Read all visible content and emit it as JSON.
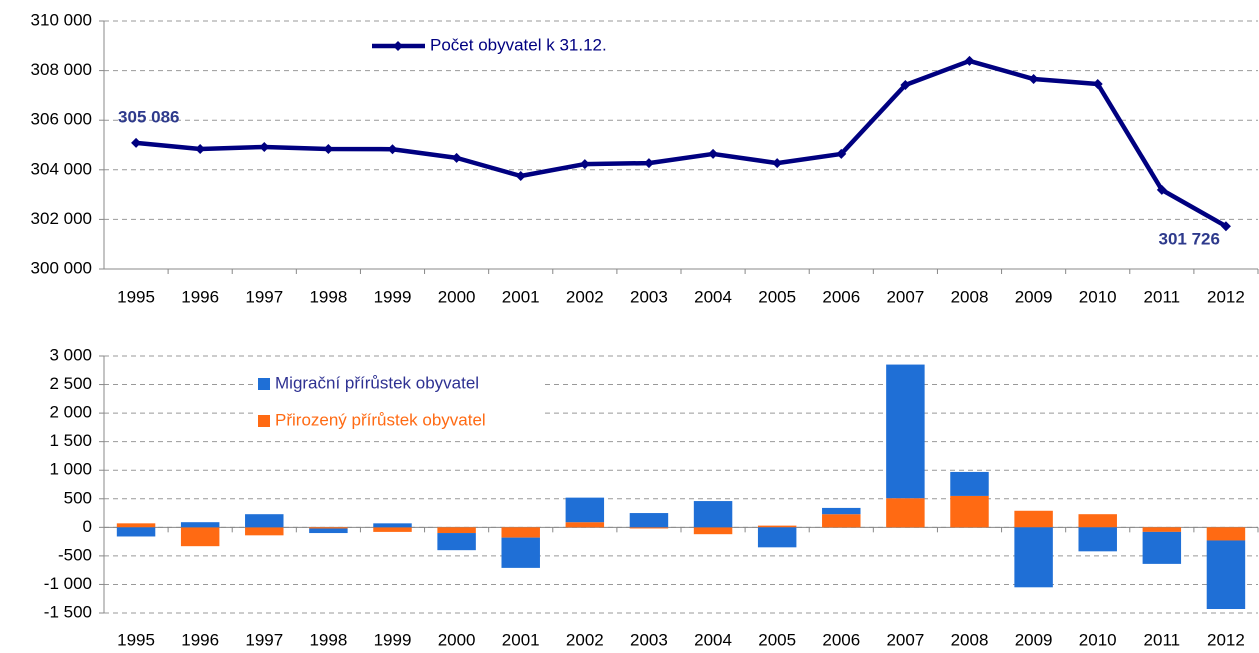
{
  "chart_data": [
    {
      "type": "line",
      "categories": [
        "1995",
        "1996",
        "1997",
        "1998",
        "1999",
        "2000",
        "2001",
        "2002",
        "2003",
        "2004",
        "2005",
        "2006",
        "2007",
        "2008",
        "2009",
        "2010",
        "2011",
        "2012"
      ],
      "series": [
        {
          "name": "Počet obyvatel k 31.12.",
          "color": "#000080",
          "values": [
            305086,
            304840,
            304920,
            304840,
            304830,
            304480,
            303750,
            304230,
            304270,
            304640,
            304270,
            304640,
            307420,
            308390,
            307660,
            307460,
            303190,
            301726
          ],
          "value_labels": [
            "305 086",
            null,
            null,
            null,
            null,
            null,
            null,
            null,
            null,
            null,
            null,
            null,
            null,
            null,
            null,
            null,
            null,
            "301 726"
          ]
        }
      ],
      "ylim": [
        300000,
        310000
      ],
      "yticks": [
        {
          "value": 300000,
          "label": "300 000"
        },
        {
          "value": 302000,
          "label": "302 000"
        },
        {
          "value": 304000,
          "label": "304 000"
        },
        {
          "value": 306000,
          "label": "306 000"
        },
        {
          "value": 308000,
          "label": "308 000"
        },
        {
          "value": 310000,
          "label": "310 000"
        }
      ],
      "grid": true
    },
    {
      "type": "stacked_bar",
      "categories": [
        "1995",
        "1996",
        "1997",
        "1998",
        "1999",
        "2000",
        "2001",
        "2002",
        "2003",
        "2004",
        "2005",
        "2006",
        "2007",
        "2008",
        "2009",
        "2010",
        "2011",
        "2012"
      ],
      "series": [
        {
          "name": "Migrační přírůstek obyvatel",
          "color": "#1f6fd6",
          "values": [
            -160,
            90,
            230,
            -80,
            70,
            -300,
            -530,
            430,
            250,
            460,
            -350,
            110,
            2340,
            420,
            -1050,
            -420,
            -560,
            -1200
          ]
        },
        {
          "name": "Přirozený přírůstek obyvatel",
          "color": "#ff6a13",
          "values": [
            70,
            -330,
            -140,
            -20,
            -80,
            -100,
            -180,
            90,
            -20,
            -120,
            30,
            230,
            510,
            550,
            290,
            230,
            -80,
            -230
          ]
        }
      ],
      "ylim": [
        -1500,
        3000
      ],
      "yticks": [
        {
          "value": -1500,
          "label": "-1 500"
        },
        {
          "value": -1000,
          "label": "-1 000"
        },
        -500,
        0,
        500,
        {
          "value": 1000,
          "label": "1 000"
        },
        {
          "value": 1500,
          "label": "1 500"
        },
        {
          "value": 2000,
          "label": "2 000"
        },
        {
          "value": 2500,
          "label": "2 500"
        },
        {
          "value": 3000,
          "label": "3 000"
        }
      ],
      "grid": true
    }
  ]
}
